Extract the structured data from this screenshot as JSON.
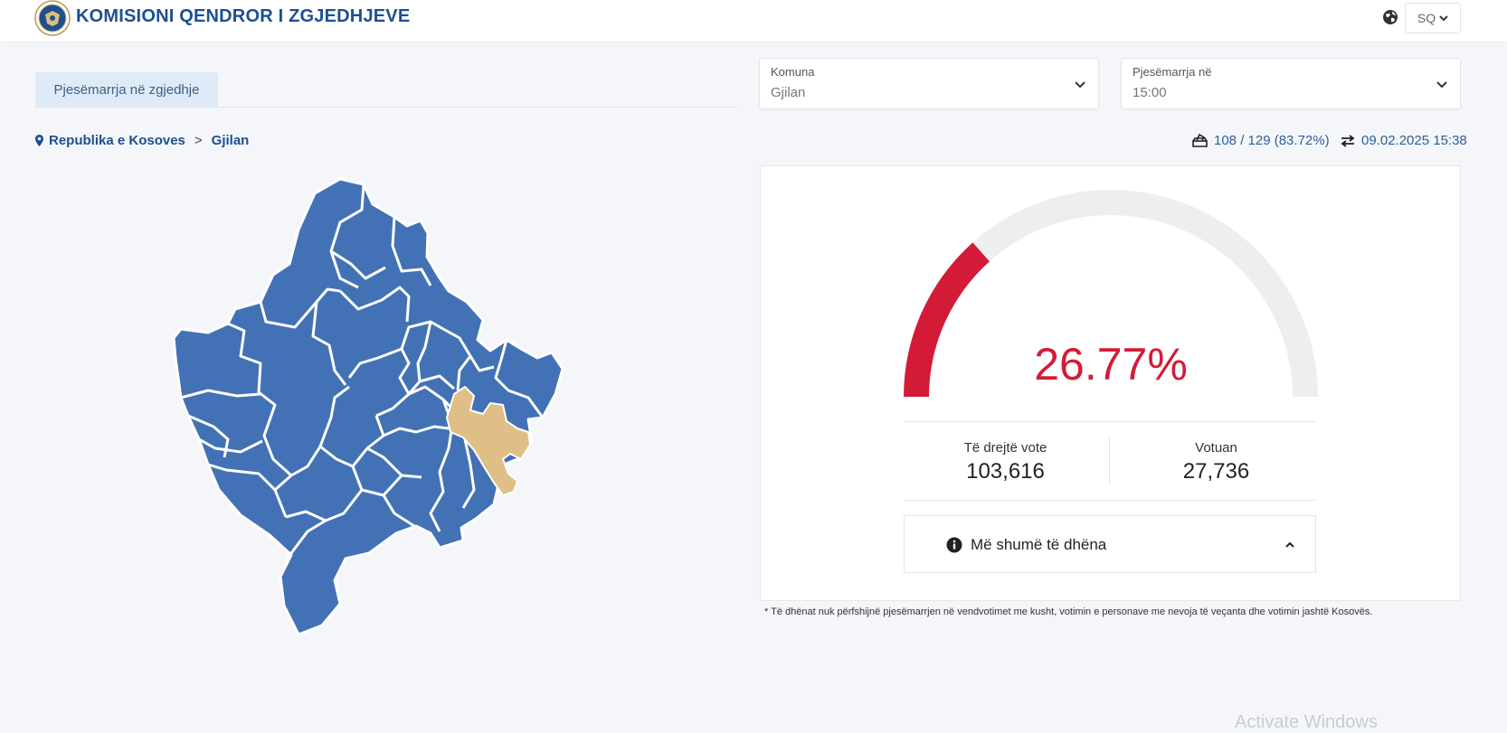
{
  "header": {
    "title": "KOMISIONI QENDROR I ZGJEDHJEVE",
    "logo_icon": "kqz-seal-logo",
    "language": "SQ"
  },
  "tabs": [
    {
      "label": "Pjesëmarrja në zgjedhje",
      "active": true
    }
  ],
  "filters": {
    "municipality": {
      "label": "Komuna",
      "value": "Gjilan"
    },
    "turnout_time": {
      "label": "Pjesëmarrja në",
      "value": "15:00"
    }
  },
  "breadcrumb": {
    "root": "Republika e Kosoves",
    "separator": ">",
    "current": "Gjilan"
  },
  "stats": {
    "stations": "108 / 129 (83.72%)",
    "updated": "09.02.2025 15:38"
  },
  "turnout": {
    "percent_text": "26.77%",
    "fraction": 0.2677,
    "eligible_label": "Të drejtë vote",
    "eligible_value": "103,616",
    "voted_label": "Votuan",
    "voted_value": "27,736"
  },
  "more_info": {
    "label": "Më shumë të dhëna"
  },
  "footnote": "* Të dhënat nuk përfshijnë pjesëmarrjen në vendvotimet me kusht, votimin e personave me nevoja të veçanta dhe votimin jashtë Kosovës.",
  "watermark": "Activate Windows",
  "colors": {
    "brand": "#1e4f91",
    "map_fill": "#4272b5",
    "map_selected": "#dfbf85",
    "gauge_fill": "#d31b37",
    "gauge_track": "#eeeeee"
  }
}
